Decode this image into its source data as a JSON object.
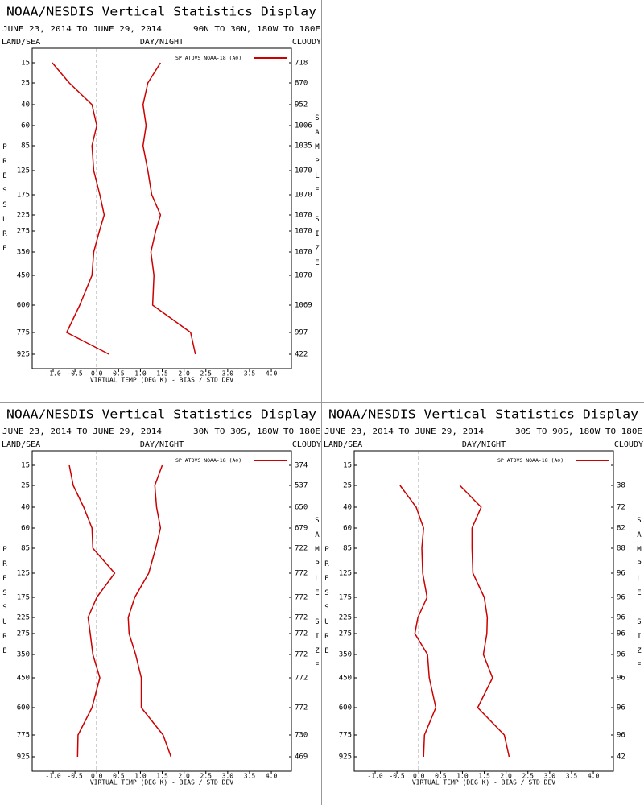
{
  "chart_data": [
    {
      "type": "line",
      "title": "NOAA/NESDIS Vertical Statistics Display",
      "subtitle": "JUNE 23, 2014 TO JUNE 29, 2014",
      "region": "90N TO 30N, 180W TO 180E",
      "land_label": "LAND/SEA",
      "day_label": "DAY/NIGHT",
      "cloud_label": "CLOUDY",
      "y_label": "PRESSURE",
      "y2_label": "SAMPLE SIZE",
      "x_label": "VIRTUAL TEMP (DEG K) - BIAS / STD DEV",
      "legend": "SP ATOVS NOAA-18 (A⊕)",
      "legend_color": "#cc0000",
      "pressure_levels": [
        15,
        25,
        40,
        60,
        85,
        125,
        175,
        225,
        275,
        350,
        450,
        600,
        775,
        925
      ],
      "sample_size": [
        718,
        870,
        952,
        1006,
        1035,
        1070,
        1070,
        1070,
        1070,
        1070,
        1070,
        1069,
        997,
        422
      ],
      "xlim": [
        -1.48,
        4.46
      ],
      "xticks": [
        {
          "value": -1,
          "label": "-1.0"
        },
        {
          "value": -0.5,
          "label": "-0.5"
        },
        {
          "value": 0,
          "label": "0.0"
        },
        {
          "value": 0.5,
          "label": "0.5"
        },
        {
          "value": 1,
          "label": "1.0"
        },
        {
          "value": 1.5,
          "label": "1.5"
        },
        {
          "value": 2,
          "label": "2.0"
        },
        {
          "value": 2.5,
          "label": "2.5"
        },
        {
          "value": 3,
          "label": "3.0"
        },
        {
          "value": 3.5,
          "label": "3.5"
        },
        {
          "value": 4,
          "label": "4.0"
        }
      ],
      "zero_line": true,
      "series": [
        {
          "color": "#cc0000",
          "values": [
            -1.02,
            -0.63,
            -0.11,
            0.0,
            -0.11,
            -0.07,
            0.07,
            0.17,
            0.06,
            -0.07,
            -0.11,
            -0.39,
            -0.69,
            0.28
          ]
        },
        {
          "color": "#cc0000",
          "values": [
            1.46,
            1.17,
            1.06,
            1.13,
            1.06,
            1.17,
            1.26,
            1.46,
            1.35,
            1.24,
            1.31,
            1.28,
            2.15,
            2.26
          ]
        }
      ]
    },
    {
      "type": "line",
      "title": "NOAA/NESDIS Vertical Statistics Display",
      "subtitle": "JUNE 23, 2014 TO JUNE 29, 2014",
      "region": "30N TO 30S, 180W TO 180E",
      "land_label": "LAND/SEA",
      "day_label": "DAY/NIGHT",
      "cloud_label": "CLOUDY",
      "y_label": "PRESSURE",
      "y2_label": "SAMPLE SIZE",
      "x_label": "VIRTUAL TEMP (DEG K) - BIAS / STD DEV",
      "legend": "SP ATOVS NOAA-18 (A⊕)",
      "legend_color": "#cc0000",
      "pressure_levels": [
        15,
        25,
        40,
        60,
        85,
        125,
        175,
        225,
        275,
        350,
        450,
        600,
        775,
        925
      ],
      "sample_size": [
        374,
        537,
        650,
        679,
        722,
        772,
        772,
        772,
        772,
        772,
        772,
        772,
        730,
        469
      ],
      "xlim": [
        -1.48,
        4.46
      ],
      "xticks": [
        {
          "value": -1,
          "label": "-1.0"
        },
        {
          "value": -0.5,
          "label": "-0.5"
        },
        {
          "value": 0,
          "label": "0.0"
        },
        {
          "value": 0.5,
          "label": "0.5"
        },
        {
          "value": 1,
          "label": "1.0"
        },
        {
          "value": 1.5,
          "label": "1.5"
        },
        {
          "value": 2,
          "label": "2.0"
        },
        {
          "value": 2.5,
          "label": "2.5"
        },
        {
          "value": 3,
          "label": "3.0"
        },
        {
          "value": 3.5,
          "label": "3.5"
        },
        {
          "value": 4,
          "label": "4.0"
        }
      ],
      "zero_line": true,
      "series": [
        {
          "color": "#cc0000",
          "values": [
            -0.63,
            -0.54,
            -0.3,
            -0.11,
            -0.09,
            0.41,
            0.0,
            -0.2,
            -0.15,
            -0.09,
            0.07,
            -0.11,
            -0.43,
            -0.44
          ]
        },
        {
          "color": "#cc0000",
          "values": [
            1.5,
            1.33,
            1.37,
            1.46,
            1.35,
            1.19,
            0.87,
            0.72,
            0.74,
            0.89,
            1.02,
            1.02,
            1.52,
            1.7
          ]
        }
      ]
    },
    {
      "type": "line",
      "title": "NOAA/NESDIS Vertical Statistics Display",
      "subtitle": "JUNE 23, 2014 TO JUNE 29, 2014",
      "region": "30S TO 90S, 180W TO 180E",
      "land_label": "LAND/SEA",
      "day_label": "DAY/NIGHT",
      "cloud_label": "CLOUDY",
      "y_label": "PRESSURE",
      "y2_label": "SAMPLE SIZE",
      "x_label": "VIRTUAL TEMP (DEG K) - BIAS / STD DEV",
      "legend": "SP ATOVS NOAA-18 (A⊕)",
      "legend_color": "#cc0000",
      "pressure_levels": [
        15,
        25,
        40,
        60,
        85,
        125,
        175,
        225,
        275,
        350,
        450,
        600,
        775,
        925
      ],
      "sample_size": [
        null,
        38,
        72,
        82,
        88,
        96,
        96,
        96,
        96,
        96,
        96,
        96,
        96,
        42
      ],
      "xlim": [
        -1.48,
        4.46
      ],
      "xticks": [
        {
          "value": -1,
          "label": "-1.0"
        },
        {
          "value": -0.5,
          "label": "-0.5"
        },
        {
          "value": 0,
          "label": "0.0"
        },
        {
          "value": 0.5,
          "label": "0.5"
        },
        {
          "value": 1,
          "label": "1.0"
        },
        {
          "value": 1.5,
          "label": "1.5"
        },
        {
          "value": 2,
          "label": "2.0"
        },
        {
          "value": 2.5,
          "label": "2.5"
        },
        {
          "value": 3,
          "label": "3.0"
        },
        {
          "value": 3.5,
          "label": "3.5"
        },
        {
          "value": 4,
          "label": "4.0"
        }
      ],
      "zero_line": true,
      "series": [
        {
          "color": "#cc0000",
          "values": [
            null,
            -0.43,
            -0.06,
            0.11,
            0.07,
            0.09,
            0.19,
            -0.02,
            -0.09,
            0.2,
            0.24,
            0.39,
            0.13,
            0.11
          ]
        },
        {
          "color": "#cc0000",
          "values": [
            null,
            0.94,
            1.43,
            1.22,
            1.22,
            1.24,
            1.5,
            1.57,
            1.56,
            1.48,
            1.69,
            1.35,
            1.96,
            2.07
          ]
        }
      ]
    }
  ]
}
